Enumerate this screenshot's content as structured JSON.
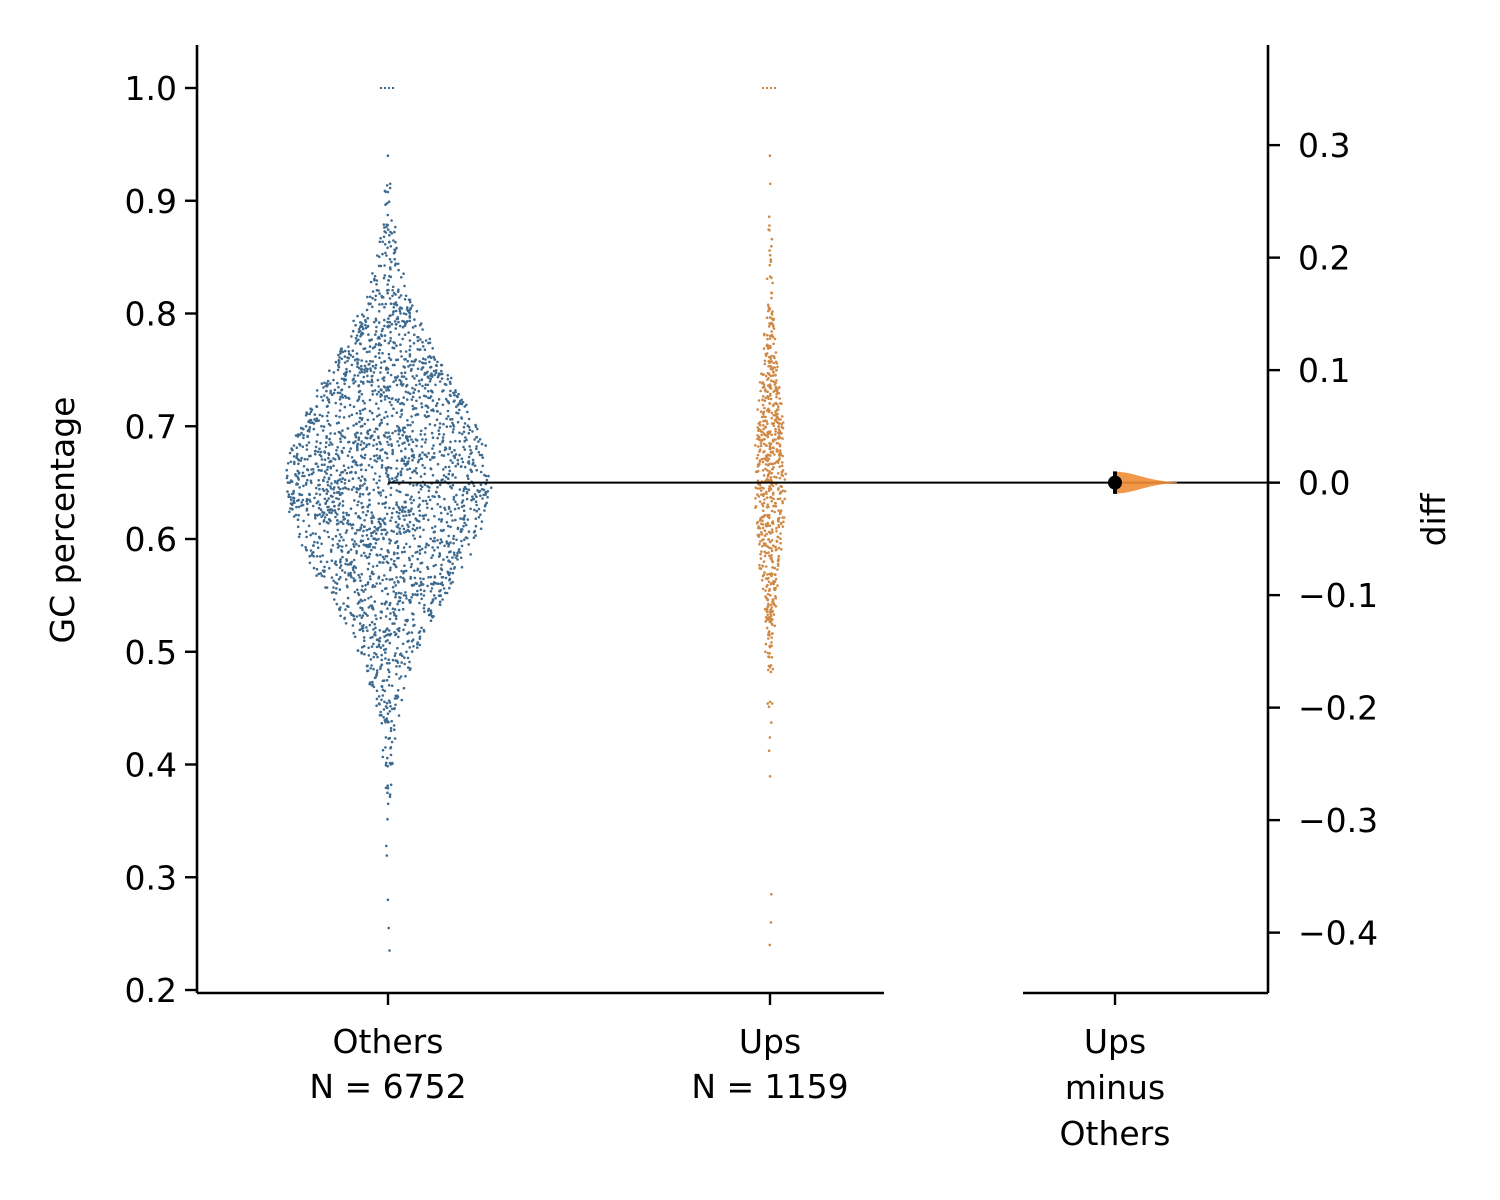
{
  "chart_data": {
    "type": "scatter",
    "subtype": "estimation-swarm-plot",
    "title": "",
    "ylabel": "GC percentage",
    "ylim": [
      0.2,
      1.0
    ],
    "yticks": [
      "0.2",
      "0.3",
      "0.4",
      "0.5",
      "0.6",
      "0.7",
      "0.8",
      "0.9",
      "1.0"
    ],
    "groups": [
      {
        "label": "Others",
        "n_label": "N = 6752",
        "n": 6752,
        "color": "#4c72b0",
        "dot_color": "#3d6a8e",
        "min": 0.235,
        "max": 1.0,
        "center": 0.65,
        "mean": 0.65
      },
      {
        "label": "Ups",
        "n_label": "N = 1159",
        "n": 1159,
        "color": "#dd8452",
        "dot_color": "#d08945",
        "min": 0.24,
        "max": 1.0,
        "center": 0.655,
        "mean": 0.65
      }
    ],
    "delta": {
      "label_lines": [
        "Ups",
        "minus",
        "Others"
      ],
      "ylabel": "diff",
      "ylim": [
        -0.45,
        0.35
      ],
      "yticks": [
        "0.3",
        "0.2",
        "0.1",
        "0.0",
        "−0.1",
        "−0.2",
        "−0.3",
        "−0.4"
      ],
      "estimate": 0.0,
      "ci": [
        -0.01,
        0.01
      ],
      "color": "#f08c35",
      "reference_value": 0.65
    }
  }
}
